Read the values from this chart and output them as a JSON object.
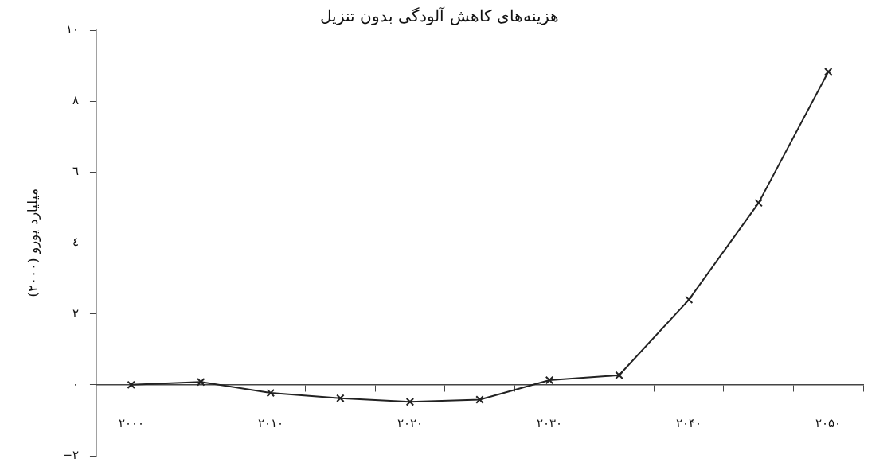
{
  "chart_data": {
    "type": "line",
    "title": "هزینه‌های کاهش آلودگی بدون تنزیل",
    "ylabel": "میلیارد یورو (۲۰۰۰)",
    "categories": [
      "۲۰۰۰",
      null,
      "۲۰۱۰",
      null,
      "۲۰۲۰",
      null,
      "۲۰۳۰",
      null,
      "۲۰۴۰",
      null,
      "۲۰۵۰"
    ],
    "series": [
      {
        "color": "#222222",
        "values": [
          0,
          0.08,
          -0.23,
          -0.38,
          -0.48,
          -0.42,
          0.13,
          0.27,
          2.4,
          5.13,
          8.83
        ]
      }
    ],
    "ylim": [
      -2,
      10
    ],
    "yticks": [
      {
        "value": -2,
        "label": "−۲"
      },
      {
        "value": 0,
        "label": "۰"
      },
      {
        "value": 2,
        "label": "۲"
      },
      {
        "value": 4,
        "label": "٤"
      },
      {
        "value": 6,
        "label": "٦"
      },
      {
        "value": 8,
        "label": "۸"
      },
      {
        "value": 10,
        "label": "۱۰"
      }
    ],
    "grid": false,
    "legend": false,
    "marker": "cross",
    "line_style": "solid"
  }
}
